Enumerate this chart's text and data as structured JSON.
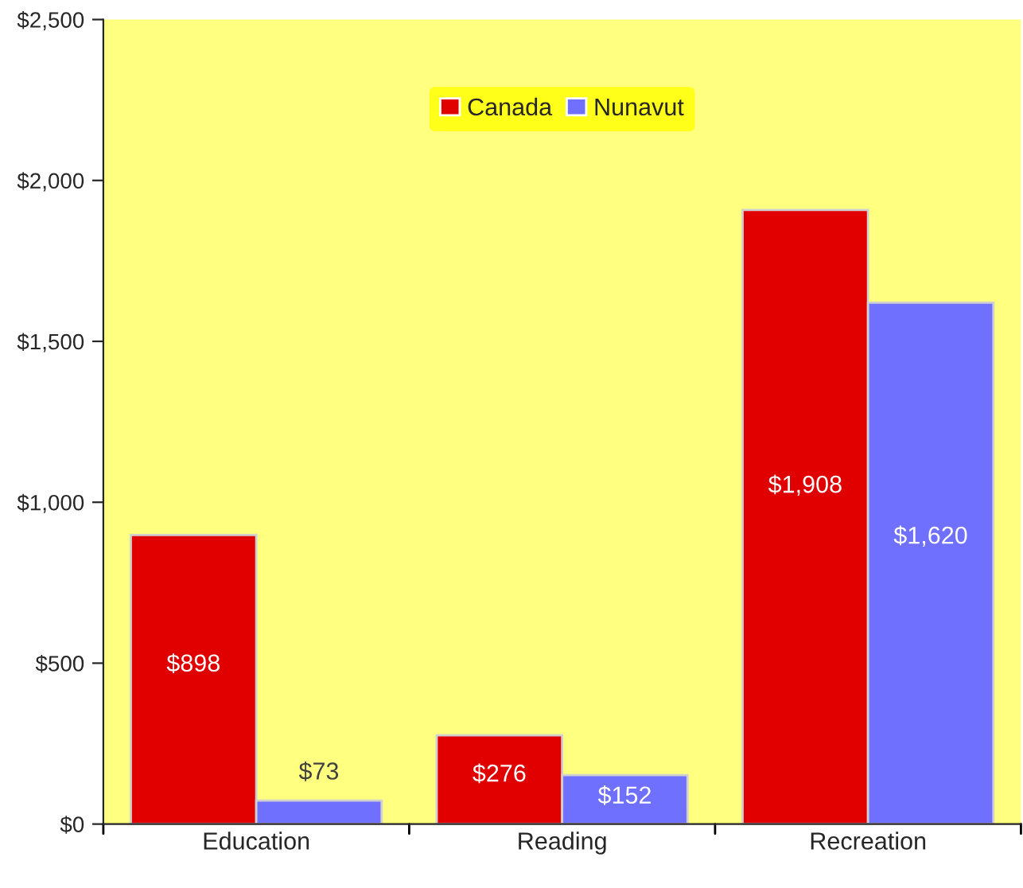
{
  "chart_data": {
    "type": "bar",
    "categories": [
      "Education",
      "Reading",
      "Recreation"
    ],
    "series": [
      {
        "name": "Canada",
        "color": "#e00000",
        "values": [
          898,
          276,
          1908
        ],
        "value_labels": [
          "$898",
          "$276",
          "$1,908"
        ]
      },
      {
        "name": "Nunavut",
        "color": "#7070ff",
        "values": [
          73,
          152,
          1620
        ],
        "value_labels": [
          "$73",
          "$152",
          "$1,620"
        ]
      }
    ],
    "ylim": [
      0,
      2500
    ],
    "yticks": [
      {
        "value": 0,
        "label": "$0"
      },
      {
        "value": 500,
        "label": "$500"
      },
      {
        "value": 1000,
        "label": "$1,000"
      },
      {
        "value": 1500,
        "label": "$1,500"
      },
      {
        "value": 2000,
        "label": "$2,000"
      },
      {
        "value": 2500,
        "label": "$2,500"
      }
    ],
    "grid": false,
    "legend": "top"
  }
}
